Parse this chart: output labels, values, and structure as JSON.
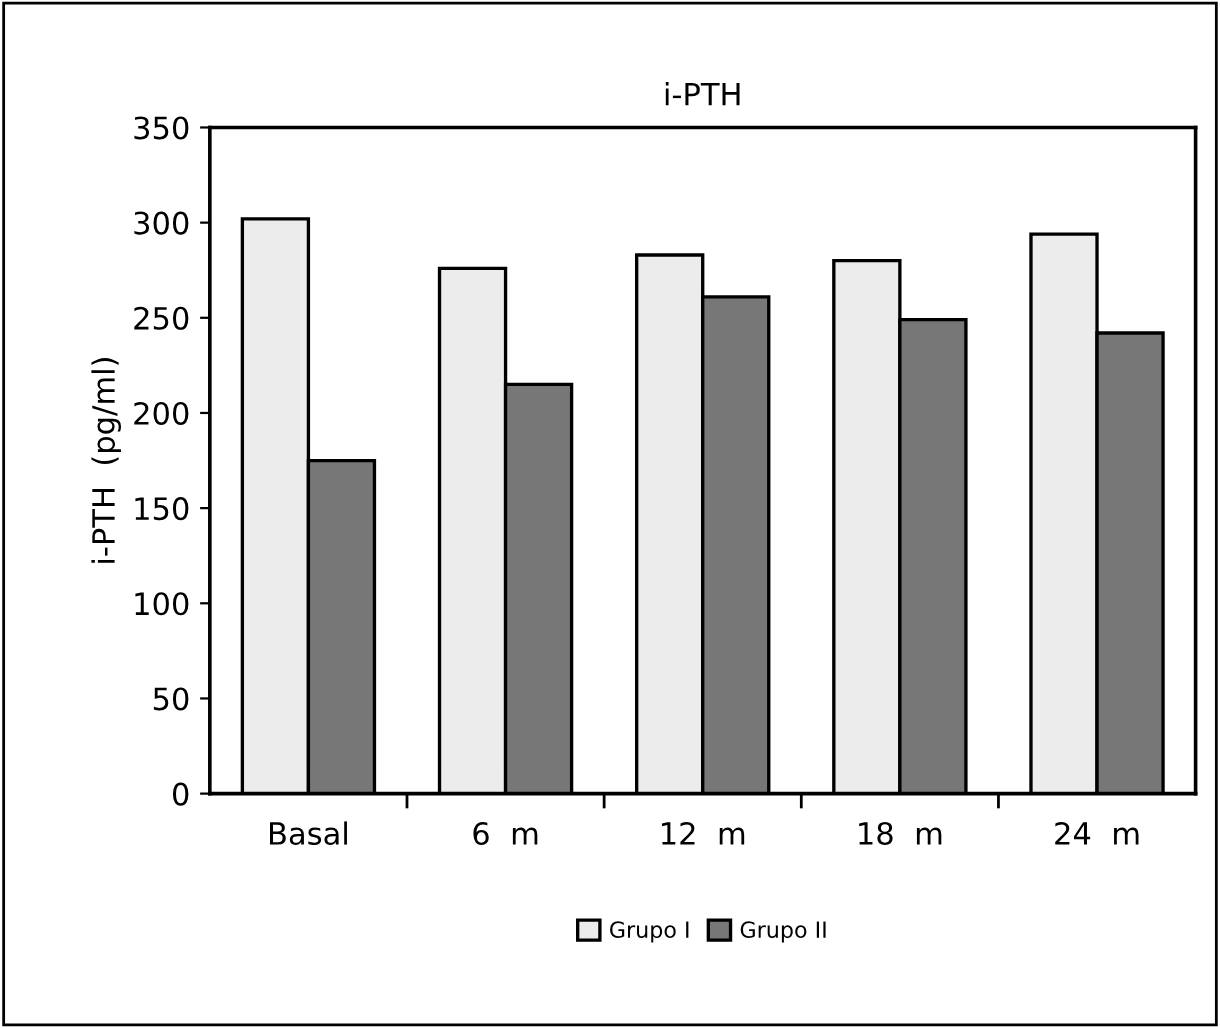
{
  "chart_data": {
    "type": "bar",
    "title": "i-PTH",
    "ylabel": "i-PTH  (pg/ml)",
    "categories": [
      "Basal",
      "6  m",
      "12  m",
      "18  m",
      "24  m"
    ],
    "series": [
      {
        "name": "Grupo I",
        "color": "#ececec",
        "values": [
          302,
          276,
          283,
          280,
          294
        ]
      },
      {
        "name": "Grupo II",
        "color": "#777777",
        "values": [
          175,
          215,
          261,
          249,
          242
        ]
      }
    ],
    "ylim": [
      0,
      350
    ],
    "yticks": [
      0,
      50,
      100,
      150,
      200,
      250,
      300,
      350
    ],
    "grid": false,
    "legend": "bottom"
  }
}
